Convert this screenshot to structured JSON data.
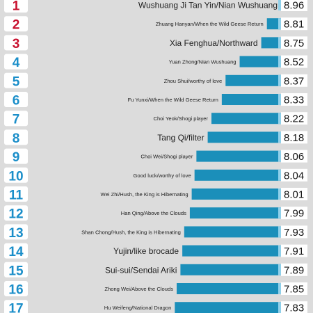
{
  "chart_data": {
    "type": "bar",
    "orientation": "horizontal",
    "ranks": [
      "1",
      "2",
      "3",
      "4",
      "5",
      "6",
      "7",
      "8",
      "9",
      "10",
      "11",
      "12",
      "13",
      "14",
      "15",
      "16",
      "17"
    ],
    "categories": [
      "Wushuang Ji Tan Yin/Nian Wushuang",
      "Zhuang Hanyan/When the Wild Geese Return",
      "Xia Fenghua/Northward",
      "Yuan Zhong/Nian Wushuang",
      "Zhou Shui/worthy of love",
      "Fu Yunxi/When the Wild Geese Return",
      "Choi Yeok/Shogi player",
      "Tang Qi/filter",
      "Choi Wei/Shogi player",
      "Good luck/worthy of love",
      "Wei Zhi/Hush, the King is Hibernating",
      "Han Qing/Above the Clouds",
      "Shan Chong/Hush, the King is Hibernating",
      "Yujin/like brocade",
      "Sui-sui/Sendai Ariki",
      "Zhong Wei/Above the Clouds",
      "Hu Weifeng/National Dragon"
    ],
    "values": [
      8.96,
      8.81,
      8.75,
      8.52,
      8.37,
      8.33,
      8.22,
      8.18,
      8.06,
      8.04,
      8.01,
      7.99,
      7.93,
      7.91,
      7.89,
      7.85,
      7.83
    ],
    "value_labels": [
      "8.96",
      "8.81",
      "8.75",
      "8.52",
      "8.37",
      "8.33",
      "8.22",
      "8.18",
      "8.06",
      "8.04",
      "8.01",
      "7.99",
      "7.93",
      "7.91",
      "7.89",
      "7.85",
      "7.83"
    ],
    "label_emphasis": [
      true,
      false,
      true,
      false,
      false,
      false,
      false,
      true,
      false,
      false,
      false,
      false,
      false,
      true,
      true,
      false,
      false
    ],
    "colors": {
      "background": "#dcdcdc",
      "bar": "#1b8fba",
      "bar_cap": "#8fd0ea",
      "rank_top3": "#c8102e",
      "rank_other": "#1a8ec9",
      "label_text": "#222222",
      "value_text": "#111111"
    }
  }
}
